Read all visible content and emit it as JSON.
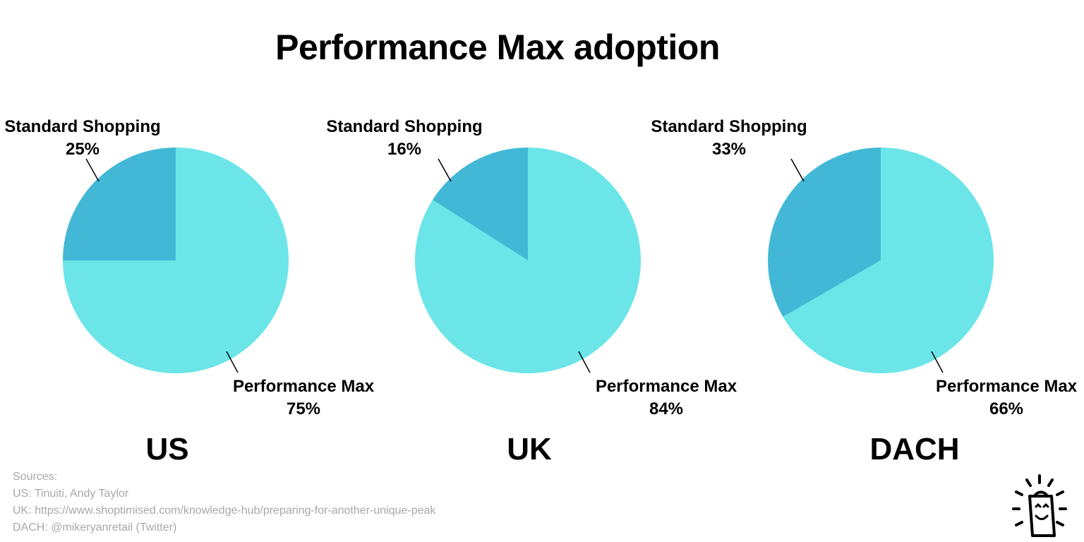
{
  "title": "Performance Max adoption",
  "chart_data": [
    {
      "type": "pie",
      "title": "US",
      "categories": [
        "Standard Shopping",
        "Performance Max"
      ],
      "values": [
        25,
        75
      ],
      "labels": [
        "25%",
        "75%"
      ],
      "colors": [
        "#42b8d6",
        "#6be5e8"
      ]
    },
    {
      "type": "pie",
      "title": "UK",
      "categories": [
        "Standard Shopping",
        "Performance Max"
      ],
      "values": [
        16,
        84
      ],
      "labels": [
        "16%",
        "84%"
      ],
      "colors": [
        "#42b8d6",
        "#6be5e8"
      ]
    },
    {
      "type": "pie",
      "title": "DACH",
      "categories": [
        "Standard Shopping",
        "Performance Max"
      ],
      "values": [
        33,
        66
      ],
      "labels": [
        "33%",
        "66%"
      ],
      "colors": [
        "#42b8d6",
        "#6be5e8"
      ]
    }
  ],
  "sources": {
    "heading": "Sources:",
    "lines": [
      "US: Tinuiti, Andy Taylor",
      "UK: https://www.shoptimised.com/knowledge-hub/preparing-for-another-unique-peak",
      "DACH: @mikeryanretail (Twitter)"
    ]
  },
  "logo": {
    "icon": "smiling-shopping-bag-icon"
  }
}
